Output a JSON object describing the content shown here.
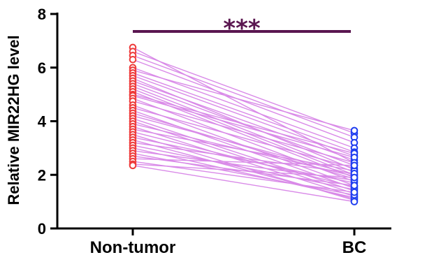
{
  "chart_data": {
    "type": "scatter",
    "subtype": "paired-before-after",
    "ylabel": "Relative MIR22HG level",
    "xlabel": "",
    "ylim": [
      0,
      8
    ],
    "yticks": [
      "0",
      "2",
      "4",
      "6",
      "8"
    ],
    "categories": [
      "Non-tumor",
      "BC"
    ],
    "significance": "***",
    "colors": {
      "non_tumor_points": "#ee3b3b",
      "bc_points": "#1f3ef0",
      "pair_lines": "#d98ae8",
      "significance_bar": "#5a1650",
      "axis": "#000000"
    },
    "pairs": [
      [
        6.75,
        2.45
      ],
      [
        6.6,
        3.55
      ],
      [
        6.45,
        3.4
      ],
      [
        6.3,
        3.2
      ],
      [
        6.0,
        3.0
      ],
      [
        5.9,
        3.65
      ],
      [
        5.8,
        2.85
      ],
      [
        5.7,
        2.7
      ],
      [
        5.6,
        2.2
      ],
      [
        5.5,
        2.55
      ],
      [
        5.4,
        2.35
      ],
      [
        5.3,
        2.1
      ],
      [
        5.2,
        2.0
      ],
      [
        5.1,
        1.9
      ],
      [
        5.0,
        2.8
      ],
      [
        4.95,
        2.65
      ],
      [
        4.85,
        1.75
      ],
      [
        4.75,
        2.45
      ],
      [
        4.6,
        1.6
      ],
      [
        4.5,
        2.25
      ],
      [
        4.4,
        1.5
      ],
      [
        4.3,
        1.85
      ],
      [
        4.2,
        2.0
      ],
      [
        4.1,
        1.4
      ],
      [
        4.0,
        1.3
      ],
      [
        3.9,
        1.95
      ],
      [
        3.8,
        1.2
      ],
      [
        3.7,
        2.15
      ],
      [
        3.6,
        1.55
      ],
      [
        3.5,
        1.05
      ],
      [
        3.4,
        1.7
      ],
      [
        3.3,
        1.1
      ],
      [
        3.2,
        2.05
      ],
      [
        3.1,
        1.45
      ],
      [
        3.0,
        1.15
      ],
      [
        2.9,
        1.8
      ],
      [
        2.8,
        1.25
      ],
      [
        2.7,
        1.6
      ],
      [
        2.6,
        2.35
      ],
      [
        2.5,
        1.35
      ],
      [
        2.4,
        1.9
      ],
      [
        2.35,
        1.0
      ]
    ]
  }
}
